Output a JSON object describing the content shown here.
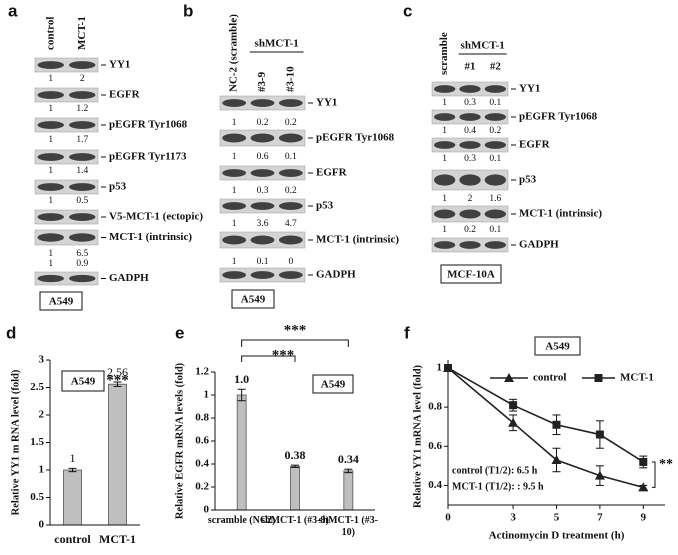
{
  "figure": {
    "blots": [
      {
        "panel_label": "a",
        "lanes": [
          "control",
          "MCT-1"
        ],
        "cell_line": "A549",
        "rows": [
          {
            "label": "YY1",
            "quant": [
              1,
              2
            ]
          },
          {
            "label": "EGFR",
            "quant": [
              1,
              1.2
            ]
          },
          {
            "label": "pEGFR Tyr1068",
            "quant": [
              1,
              1.7
            ]
          },
          {
            "label": "pEGFR Tyr1173",
            "quant": [
              1,
              1.4
            ]
          },
          {
            "label": "p53",
            "quant": [
              1,
              0.5
            ]
          },
          {
            "label": "V5-MCT-1 (ectopic)",
            "quant": [
              1,
              6.5
            ]
          },
          {
            "label": "MCT-1 (intrinsic)",
            "quant": [
              1,
              0.9
            ]
          },
          {
            "label": "GADPH"
          }
        ]
      },
      {
        "panel_label": "b",
        "lanes": [
          "NC-2 (scramble)",
          "#3-9",
          "#3-10"
        ],
        "lane_group": "shMCT-1",
        "cell_line": "A549",
        "rows": [
          {
            "label": "YY1",
            "quant": [
              1,
              0.2,
              0.2
            ]
          },
          {
            "label": "pEGFR Tyr1068",
            "quant": [
              1,
              0.6,
              0.1
            ]
          },
          {
            "label": "EGFR",
            "quant": [
              1,
              0.3,
              0.2
            ]
          },
          {
            "label": "p53",
            "quant": [
              1,
              3.6,
              4.7
            ]
          },
          {
            "label": "MCT-1 (intrinsic)",
            "quant": [
              1,
              0.1,
              0
            ]
          },
          {
            "label": "GADPH"
          }
        ]
      },
      {
        "panel_label": "c",
        "lanes": [
          "scramble",
          "#1",
          "#2"
        ],
        "lane_group": "shMCT-1",
        "cell_line": "MCF-10A",
        "rows": [
          {
            "label": "YY1",
            "quant": [
              1,
              0.3,
              0.1
            ]
          },
          {
            "label": "pEGFR Tyr1068",
            "quant": [
              1,
              0.4,
              0.2
            ]
          },
          {
            "label": "EGFR",
            "quant": [
              1,
              0.3,
              0.1
            ]
          },
          {
            "label": "p53",
            "quant": [
              1,
              2,
              1.6
            ]
          },
          {
            "label": "MCT-1 (intrinsic)",
            "quant": [
              1,
              0.2,
              0.1
            ]
          },
          {
            "label": "GADPH"
          }
        ]
      }
    ]
  },
  "chart_data": [
    {
      "type": "bar",
      "panel_label": "d",
      "ylabel": "Relative YY1 m RNA level (fold)",
      "box": "A549",
      "categories": [
        "control",
        "MCT-1"
      ],
      "values": [
        1,
        2.56
      ],
      "value_labels": [
        "1",
        "2.56"
      ],
      "errors": [
        0.03,
        0.04
      ],
      "color": "#bfbfbf",
      "ylim": [
        0,
        3
      ],
      "yticks": [
        0,
        0.5,
        1,
        1.5,
        2,
        2.5,
        3
      ],
      "annotations": [
        "***"
      ]
    },
    {
      "type": "bar",
      "panel_label": "e",
      "ylabel": "Relative EGFR mRNA levels (fold)",
      "box": "A549",
      "categories": [
        "scramble (NC2)",
        "shMCT-1 (#3-9)",
        "shMCT-1 (#3-10)"
      ],
      "values": [
        1.0,
        0.38,
        0.34
      ],
      "value_labels": [
        "1.0",
        "0.38",
        "0.34"
      ],
      "errors": [
        0.05,
        0.01,
        0.015
      ],
      "color": "#bfbfbf",
      "ylim": [
        0,
        1.2
      ],
      "yticks": [
        0,
        0.2,
        0.4,
        0.6,
        0.8,
        1,
        1.2
      ],
      "annotations": [
        "***",
        "***"
      ]
    },
    {
      "type": "line",
      "panel_label": "f",
      "ylabel": "Relative YY1 mRNA level (fold)",
      "xlabel": "Actinomycin D treatment (h)",
      "box": "A549",
      "x": [
        0,
        3,
        5,
        7,
        9
      ],
      "xlim": [
        0,
        10
      ],
      "xticks": [
        0,
        3,
        5,
        7,
        9
      ],
      "ylim": [
        0.3,
        1
      ],
      "yticks": [
        0.4,
        0.6,
        0.8,
        1
      ],
      "series": [
        {
          "name": "control",
          "color": "#222222",
          "marker": "triangle",
          "values": [
            1,
            0.72,
            0.53,
            0.45,
            0.39
          ],
          "errors": [
            0,
            0.04,
            0.06,
            0.05,
            0.01
          ]
        },
        {
          "name": "MCT-1",
          "color": "#222222",
          "marker": "square",
          "values": [
            1,
            0.81,
            0.71,
            0.66,
            0.52
          ],
          "errors": [
            0,
            0.03,
            0.05,
            0.07,
            0.03
          ]
        }
      ],
      "annotations": [
        "control (T1/2): 6.5 h",
        "MCT-1 (T1/2): : 9.5 h",
        "**"
      ]
    }
  ]
}
